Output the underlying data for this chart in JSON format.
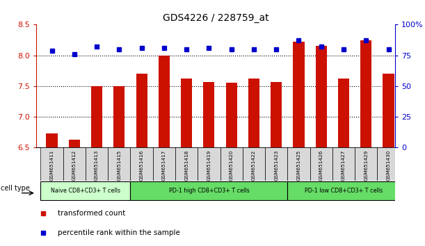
{
  "title": "GDS4226 / 228759_at",
  "samples": [
    "GSM651411",
    "GSM651412",
    "GSM651413",
    "GSM651415",
    "GSM651416",
    "GSM651417",
    "GSM651418",
    "GSM651419",
    "GSM651420",
    "GSM651422",
    "GSM651423",
    "GSM651425",
    "GSM651426",
    "GSM651427",
    "GSM651429",
    "GSM651430"
  ],
  "transformed_count": [
    6.73,
    6.63,
    7.5,
    7.5,
    7.7,
    8.0,
    7.62,
    7.57,
    7.55,
    7.62,
    7.57,
    8.22,
    8.15,
    7.62,
    8.25,
    7.7
  ],
  "percentile_rank": [
    79,
    76,
    82,
    80,
    81,
    81,
    80,
    81,
    80,
    80,
    80,
    87,
    82,
    80,
    87,
    80
  ],
  "bar_color": "#cc1100",
  "dot_color": "#0000cc",
  "ylim_left": [
    6.5,
    8.5
  ],
  "ylim_right": [
    0,
    100
  ],
  "yticks_left": [
    6.5,
    7.0,
    7.5,
    8.0,
    8.5
  ],
  "yticks_right": [
    0,
    25,
    50,
    75,
    100
  ],
  "ytick_labels_right": [
    "0",
    "25",
    "50",
    "75",
    "100%"
  ],
  "grid_lines": [
    7.0,
    7.5,
    8.0
  ],
  "groups": [
    {
      "label": "Naive CD8+CD3+ T cells",
      "start": 0,
      "end": 4,
      "color": "#ccffcc"
    },
    {
      "label": "PD-1 high CD8+CD3+ T cells",
      "start": 4,
      "end": 11,
      "color": "#66dd66"
    },
    {
      "label": "PD-1 low CD8+CD3+ T cells",
      "start": 11,
      "end": 16,
      "color": "#66dd66"
    }
  ],
  "cell_type_label": "cell type",
  "legend_items": [
    {
      "label": "transformed count",
      "color": "#cc1100"
    },
    {
      "label": "percentile rank within the sample",
      "color": "#0000cc"
    }
  ],
  "background_color": "#ffffff",
  "plot_bg_color": "#ffffff",
  "tick_label_color_left": "#cc1100",
  "tick_label_color_right": "#0000cc",
  "title_fontsize": 10,
  "bar_width": 0.5,
  "xlim": [
    -0.7,
    15.3
  ]
}
